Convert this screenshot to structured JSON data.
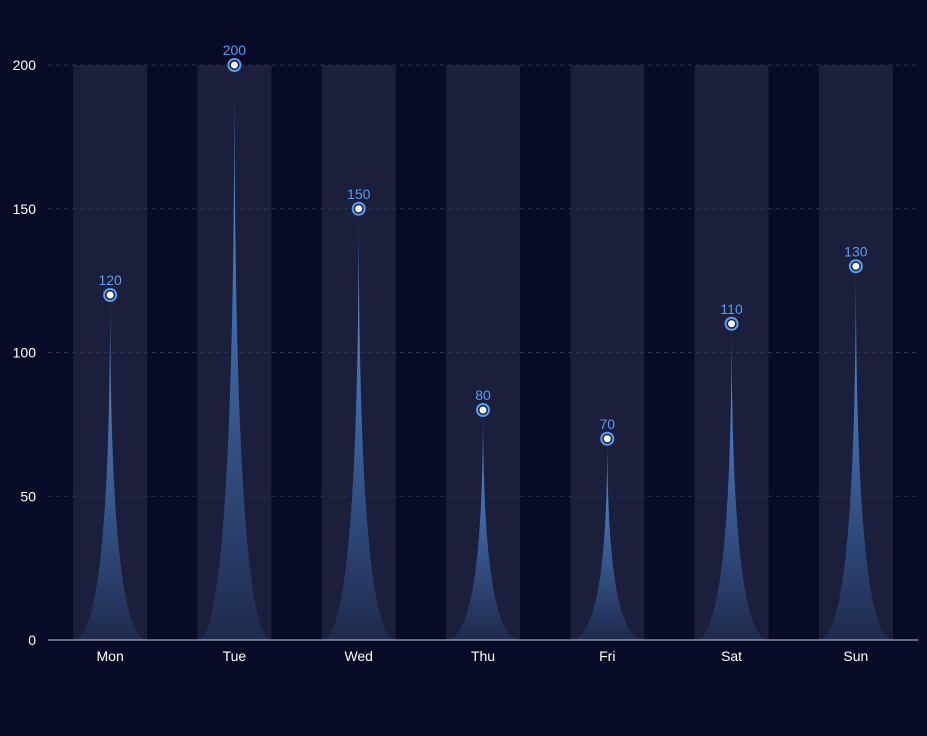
{
  "chart_data": {
    "type": "bar",
    "categories": [
      "Mon",
      "Tue",
      "Wed",
      "Thu",
      "Fri",
      "Sat",
      "Sun"
    ],
    "values": [
      120,
      200,
      150,
      80,
      70,
      110,
      130
    ],
    "ylim": [
      0,
      200
    ],
    "yticks": [
      0,
      50,
      100,
      150,
      200
    ],
    "grid": true,
    "style": "pictorial-triangle",
    "colors": {
      "background": "#080b28",
      "bar_top": "#5b9bf0",
      "bar_bottom": "#1f2a4d",
      "column_shadow": "#1b1f3b",
      "grid": "#2a3152",
      "axis": "#c8cbd6",
      "label": "#5b9bf0",
      "text": "#ffffff"
    }
  }
}
